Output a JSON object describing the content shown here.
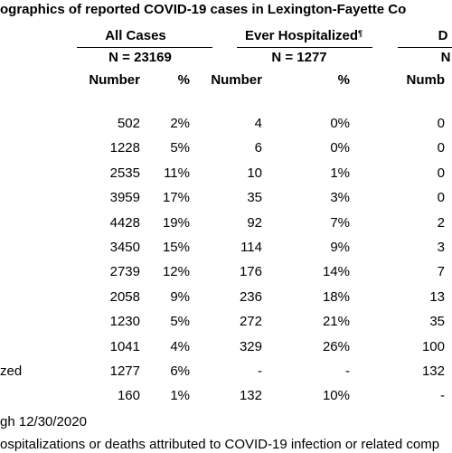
{
  "header": {
    "title": "ographics of reported COVID-19 cases in Lexington-Fayette Co"
  },
  "columns": {
    "groups": [
      {
        "name": "All Cases",
        "n": "N = 23169"
      },
      {
        "name": "Ever Hospitalized",
        "mark": "¶",
        "n": "N = 1277"
      },
      {
        "name": "D",
        "n": "N"
      }
    ],
    "subheads": [
      "Number",
      "%",
      "Number",
      "%",
      "Numb"
    ]
  },
  "table": {
    "rows": [
      {
        "cells": [
          "502",
          "2%",
          "4",
          "0%",
          "0"
        ]
      },
      {
        "cells": [
          "1228",
          "5%",
          "6",
          "0%",
          "0"
        ]
      },
      {
        "cells": [
          "2535",
          "11%",
          "10",
          "1%",
          "0"
        ]
      },
      {
        "cells": [
          "3959",
          "17%",
          "35",
          "3%",
          "0"
        ]
      },
      {
        "cells": [
          "4428",
          "19%",
          "92",
          "7%",
          "2"
        ]
      },
      {
        "cells": [
          "3450",
          "15%",
          "114",
          "9%",
          "3"
        ]
      },
      {
        "cells": [
          "2739",
          "12%",
          "176",
          "14%",
          "7"
        ]
      },
      {
        "cells": [
          "2058",
          "9%",
          "236",
          "18%",
          "13"
        ]
      },
      {
        "cells": [
          "1230",
          "5%",
          "272",
          "21%",
          "35"
        ]
      },
      {
        "cells": [
          "1041",
          "4%",
          "329",
          "26%",
          "100"
        ]
      },
      {
        "label": "zed",
        "cells": [
          "1277",
          "6%",
          "-",
          "-",
          "132"
        ]
      },
      {
        "cells": [
          "160",
          "1%",
          "132",
          "10%",
          "-"
        ]
      }
    ]
  },
  "footnotes": [
    "gh 12/30/2020",
    "ospitalizations or deaths attributed to COVID-19 infection or related comp"
  ]
}
